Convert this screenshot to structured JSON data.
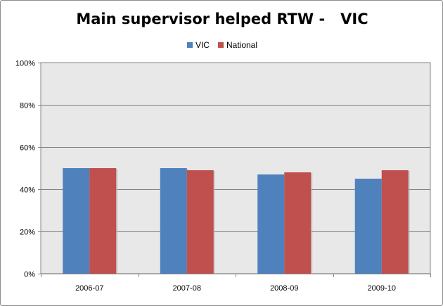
{
  "chart_data": {
    "type": "bar",
    "title": "Main supervisor helped RTW -   VIC",
    "categories": [
      "2006-07",
      "2007-08",
      "2008-09",
      "2009-10"
    ],
    "series": [
      {
        "name": "VIC",
        "values": [
          0.5,
          0.5,
          0.47,
          0.45
        ],
        "color": "#4f81bd"
      },
      {
        "name": "National",
        "values": [
          0.5,
          0.49,
          0.48,
          0.49
        ],
        "color": "#c0504d"
      }
    ],
    "yticks": [
      "0%",
      "20%",
      "40%",
      "60%",
      "80%",
      "100%"
    ],
    "ylim": [
      0,
      1
    ],
    "grid": true,
    "legend_position": "top",
    "plot_background": "#e8e8e8"
  }
}
